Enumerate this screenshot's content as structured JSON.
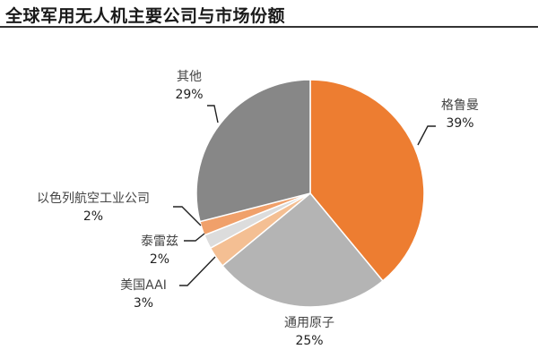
{
  "header": {
    "title": "全球军用无人机主要公司与市场份额"
  },
  "colors": {
    "grumman": "#ED7D31",
    "ga": "#B4B4B4",
    "aai": "#F4BF93",
    "thales": "#DCDCDC",
    "iai": "#F0A06A",
    "other": "#878787"
  },
  "chart_data": {
    "type": "pie",
    "title": "全球军用无人机主要公司与市场份额",
    "start_angle": "12 o'clock, clockwise",
    "slices": [
      {
        "label": "格鲁曼",
        "value": 39,
        "pct_label": "39%",
        "color": "#ED7D31"
      },
      {
        "label": "通用原子",
        "value": 25,
        "pct_label": "25%",
        "color": "#B4B4B4"
      },
      {
        "label": "美国AAI",
        "value": 3,
        "pct_label": "3%",
        "color": "#F4BF93"
      },
      {
        "label": "泰雷兹",
        "value": 2,
        "pct_label": "2%",
        "color": "#DCDCDC"
      },
      {
        "label": "以色列航空工业公司",
        "value": 2,
        "pct_label": "2%",
        "color": "#F0A06A"
      },
      {
        "label": "其他",
        "value": 29,
        "pct_label": "29%",
        "color": "#878787"
      }
    ]
  }
}
